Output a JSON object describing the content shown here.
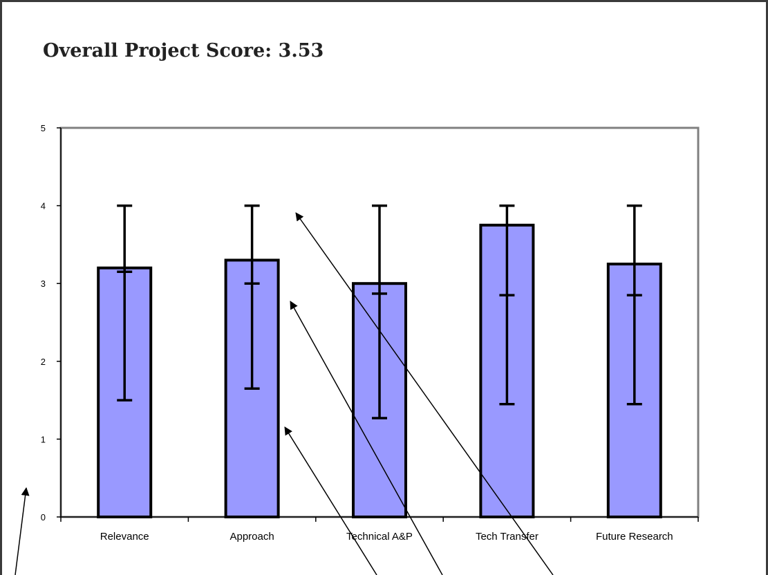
{
  "title": "Overall Project Score: 3.53",
  "chart_data": {
    "type": "bar",
    "categories": [
      "Relevance",
      "Approach",
      "Technical A&P",
      "Tech Transfer",
      "Future Research"
    ],
    "values": [
      3.2,
      3.3,
      3.0,
      3.75,
      3.25
    ],
    "error_high": [
      4.0,
      4.0,
      4.0,
      4.0,
      4.0
    ],
    "error_low": [
      1.5,
      1.65,
      1.27,
      1.45,
      1.45
    ],
    "error_mid": [
      3.15,
      3.0,
      2.87,
      2.85,
      2.85
    ],
    "ylim": [
      0,
      5
    ],
    "yticks": [
      "0",
      "1",
      "2",
      "3",
      "4",
      "5"
    ],
    "grid": false,
    "legend": "none",
    "bar_color": "#9999ff",
    "bar_edge_color": "#000000",
    "plot_border_color": "#808080",
    "title": "Overall Project Score: 3.53"
  },
  "colors": {
    "arrow": "#000000",
    "frame": "#3a3a3a"
  }
}
